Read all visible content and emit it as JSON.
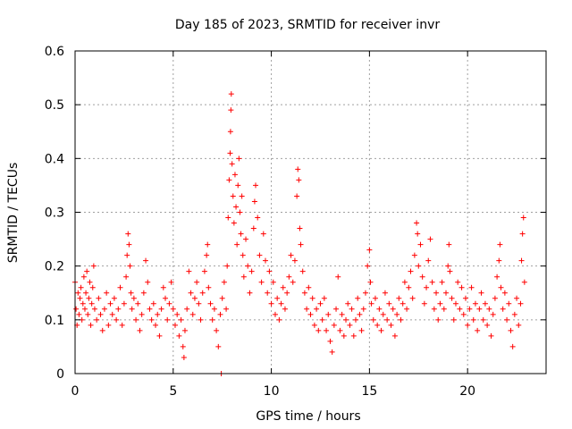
{
  "chart_data": {
    "type": "scatter",
    "title": "Day 185 of 2023, SRMTID for receiver invr",
    "xlabel": "GPS time / hours",
    "ylabel": "SRMTID / TECUs",
    "xlim": [
      0,
      24
    ],
    "ylim": [
      0,
      0.6
    ],
    "xticks": [
      0,
      5,
      10,
      15,
      20
    ],
    "yticks": [
      0,
      0.1,
      0.2,
      0.3,
      0.4,
      0.5,
      0.6
    ],
    "xtick_labels": [
      "0",
      "5",
      "10",
      "15",
      "20"
    ],
    "ytick_labels": [
      "0",
      "0.1",
      "0.2",
      "0.3",
      "0.4",
      "0.5",
      "0.6"
    ],
    "grid": true,
    "marker": "+",
    "color": "#ff0000",
    "series": [
      {
        "name": "SRMTID",
        "points": [
          [
            0.0,
            0.17
          ],
          [
            0.05,
            0.12
          ],
          [
            0.1,
            0.09
          ],
          [
            0.15,
            0.15
          ],
          [
            0.2,
            0.11
          ],
          [
            0.25,
            0.14
          ],
          [
            0.3,
            0.16
          ],
          [
            0.35,
            0.1
          ],
          [
            0.4,
            0.13
          ],
          [
            0.45,
            0.18
          ],
          [
            0.5,
            0.12
          ],
          [
            0.55,
            0.15
          ],
          [
            0.6,
            0.19
          ],
          [
            0.65,
            0.11
          ],
          [
            0.7,
            0.14
          ],
          [
            0.75,
            0.17
          ],
          [
            0.8,
            0.09
          ],
          [
            0.85,
            0.13
          ],
          [
            0.9,
            0.16
          ],
          [
            0.95,
            0.2
          ],
          [
            1.0,
            0.12
          ],
          [
            1.1,
            0.1
          ],
          [
            1.2,
            0.14
          ],
          [
            1.3,
            0.11
          ],
          [
            1.4,
            0.08
          ],
          [
            1.5,
            0.12
          ],
          [
            1.6,
            0.15
          ],
          [
            1.7,
            0.09
          ],
          [
            1.8,
            0.13
          ],
          [
            1.9,
            0.11
          ],
          [
            2.0,
            0.14
          ],
          [
            2.1,
            0.1
          ],
          [
            2.2,
            0.12
          ],
          [
            2.3,
            0.16
          ],
          [
            2.4,
            0.09
          ],
          [
            2.5,
            0.13
          ],
          [
            2.6,
            0.18
          ],
          [
            2.65,
            0.22
          ],
          [
            2.7,
            0.26
          ],
          [
            2.75,
            0.24
          ],
          [
            2.8,
            0.2
          ],
          [
            2.85,
            0.15
          ],
          [
            2.9,
            0.12
          ],
          [
            3.0,
            0.14
          ],
          [
            3.1,
            0.1
          ],
          [
            3.2,
            0.13
          ],
          [
            3.3,
            0.08
          ],
          [
            3.4,
            0.11
          ],
          [
            3.5,
            0.15
          ],
          [
            3.6,
            0.21
          ],
          [
            3.7,
            0.17
          ],
          [
            3.8,
            0.12
          ],
          [
            3.9,
            0.1
          ],
          [
            4.0,
            0.13
          ],
          [
            4.1,
            0.09
          ],
          [
            4.2,
            0.11
          ],
          [
            4.3,
            0.07
          ],
          [
            4.4,
            0.12
          ],
          [
            4.5,
            0.16
          ],
          [
            4.6,
            0.14
          ],
          [
            4.7,
            0.1
          ],
          [
            4.8,
            0.13
          ],
          [
            4.9,
            0.17
          ],
          [
            5.0,
            0.12
          ],
          [
            5.1,
            0.09
          ],
          [
            5.2,
            0.11
          ],
          [
            5.3,
            0.07
          ],
          [
            5.4,
            0.1
          ],
          [
            5.5,
            0.05
          ],
          [
            5.55,
            0.03
          ],
          [
            5.6,
            0.08
          ],
          [
            5.7,
            0.12
          ],
          [
            5.8,
            0.19
          ],
          [
            5.9,
            0.15
          ],
          [
            6.0,
            0.11
          ],
          [
            6.1,
            0.14
          ],
          [
            6.2,
            0.17
          ],
          [
            6.3,
            0.13
          ],
          [
            6.4,
            0.1
          ],
          [
            6.5,
            0.15
          ],
          [
            6.6,
            0.19
          ],
          [
            6.7,
            0.22
          ],
          [
            6.75,
            0.24
          ],
          [
            6.8,
            0.16
          ],
          [
            6.9,
            0.13
          ],
          [
            7.0,
            0.1
          ],
          [
            7.1,
            0.12
          ],
          [
            7.2,
            0.08
          ],
          [
            7.3,
            0.05
          ],
          [
            7.4,
            0.11
          ],
          [
            7.45,
            0.0
          ],
          [
            7.5,
            0.14
          ],
          [
            7.6,
            0.17
          ],
          [
            7.7,
            0.12
          ],
          [
            7.75,
            0.2
          ],
          [
            7.8,
            0.29
          ],
          [
            7.85,
            0.36
          ],
          [
            7.9,
            0.41
          ],
          [
            7.92,
            0.45
          ],
          [
            7.94,
            0.49
          ],
          [
            7.96,
            0.52
          ],
          [
            8.0,
            0.39
          ],
          [
            8.05,
            0.33
          ],
          [
            8.1,
            0.28
          ],
          [
            8.15,
            0.37
          ],
          [
            8.2,
            0.31
          ],
          [
            8.25,
            0.24
          ],
          [
            8.3,
            0.35
          ],
          [
            8.35,
            0.4
          ],
          [
            8.4,
            0.3
          ],
          [
            8.45,
            0.26
          ],
          [
            8.5,
            0.33
          ],
          [
            8.55,
            0.22
          ],
          [
            8.6,
            0.18
          ],
          [
            8.7,
            0.25
          ],
          [
            8.8,
            0.2
          ],
          [
            8.9,
            0.15
          ],
          [
            9.0,
            0.19
          ],
          [
            9.1,
            0.27
          ],
          [
            9.15,
            0.32
          ],
          [
            9.2,
            0.35
          ],
          [
            9.3,
            0.29
          ],
          [
            9.4,
            0.22
          ],
          [
            9.5,
            0.17
          ],
          [
            9.6,
            0.26
          ],
          [
            9.7,
            0.21
          ],
          [
            9.8,
            0.15
          ],
          [
            9.9,
            0.19
          ],
          [
            10.0,
            0.13
          ],
          [
            10.1,
            0.17
          ],
          [
            10.2,
            0.11
          ],
          [
            10.3,
            0.14
          ],
          [
            10.4,
            0.1
          ],
          [
            10.5,
            0.13
          ],
          [
            10.6,
            0.16
          ],
          [
            10.7,
            0.12
          ],
          [
            10.8,
            0.15
          ],
          [
            10.9,
            0.18
          ],
          [
            11.0,
            0.22
          ],
          [
            11.1,
            0.17
          ],
          [
            11.2,
            0.21
          ],
          [
            11.3,
            0.33
          ],
          [
            11.35,
            0.38
          ],
          [
            11.4,
            0.36
          ],
          [
            11.45,
            0.27
          ],
          [
            11.5,
            0.24
          ],
          [
            11.6,
            0.19
          ],
          [
            11.7,
            0.15
          ],
          [
            11.8,
            0.12
          ],
          [
            11.9,
            0.16
          ],
          [
            12.0,
            0.11
          ],
          [
            12.1,
            0.14
          ],
          [
            12.2,
            0.09
          ],
          [
            12.3,
            0.12
          ],
          [
            12.4,
            0.08
          ],
          [
            12.5,
            0.13
          ],
          [
            12.6,
            0.1
          ],
          [
            12.7,
            0.14
          ],
          [
            12.8,
            0.08
          ],
          [
            12.9,
            0.11
          ],
          [
            13.0,
            0.06
          ],
          [
            13.1,
            0.04
          ],
          [
            13.2,
            0.09
          ],
          [
            13.3,
            0.12
          ],
          [
            13.4,
            0.18
          ],
          [
            13.5,
            0.08
          ],
          [
            13.6,
            0.11
          ],
          [
            13.7,
            0.07
          ],
          [
            13.8,
            0.1
          ],
          [
            13.9,
            0.13
          ],
          [
            14.0,
            0.09
          ],
          [
            14.1,
            0.12
          ],
          [
            14.2,
            0.07
          ],
          [
            14.3,
            0.1
          ],
          [
            14.4,
            0.14
          ],
          [
            14.5,
            0.11
          ],
          [
            14.6,
            0.08
          ],
          [
            14.7,
            0.12
          ],
          [
            14.8,
            0.15
          ],
          [
            14.9,
            0.2
          ],
          [
            15.0,
            0.23
          ],
          [
            15.05,
            0.17
          ],
          [
            15.1,
            0.13
          ],
          [
            15.2,
            0.1
          ],
          [
            15.3,
            0.14
          ],
          [
            15.4,
            0.09
          ],
          [
            15.5,
            0.12
          ],
          [
            15.6,
            0.08
          ],
          [
            15.7,
            0.11
          ],
          [
            15.8,
            0.15
          ],
          [
            15.9,
            0.1
          ],
          [
            16.0,
            0.13
          ],
          [
            16.1,
            0.09
          ],
          [
            16.2,
            0.12
          ],
          [
            16.3,
            0.07
          ],
          [
            16.4,
            0.11
          ],
          [
            16.5,
            0.14
          ],
          [
            16.6,
            0.1
          ],
          [
            16.7,
            0.13
          ],
          [
            16.8,
            0.17
          ],
          [
            16.9,
            0.12
          ],
          [
            17.0,
            0.16
          ],
          [
            17.1,
            0.19
          ],
          [
            17.2,
            0.14
          ],
          [
            17.3,
            0.22
          ],
          [
            17.4,
            0.28
          ],
          [
            17.45,
            0.26
          ],
          [
            17.5,
            0.2
          ],
          [
            17.6,
            0.24
          ],
          [
            17.7,
            0.18
          ],
          [
            17.8,
            0.13
          ],
          [
            17.9,
            0.16
          ],
          [
            18.0,
            0.21
          ],
          [
            18.1,
            0.25
          ],
          [
            18.2,
            0.17
          ],
          [
            18.3,
            0.12
          ],
          [
            18.4,
            0.15
          ],
          [
            18.5,
            0.1
          ],
          [
            18.6,
            0.13
          ],
          [
            18.7,
            0.17
          ],
          [
            18.8,
            0.12
          ],
          [
            18.9,
            0.15
          ],
          [
            19.0,
            0.2
          ],
          [
            19.05,
            0.24
          ],
          [
            19.1,
            0.19
          ],
          [
            19.2,
            0.14
          ],
          [
            19.3,
            0.1
          ],
          [
            19.4,
            0.13
          ],
          [
            19.5,
            0.17
          ],
          [
            19.6,
            0.12
          ],
          [
            19.7,
            0.16
          ],
          [
            19.8,
            0.11
          ],
          [
            19.9,
            0.14
          ],
          [
            20.0,
            0.09
          ],
          [
            20.1,
            0.12
          ],
          [
            20.2,
            0.16
          ],
          [
            20.3,
            0.1
          ],
          [
            20.4,
            0.13
          ],
          [
            20.5,
            0.08
          ],
          [
            20.6,
            0.12
          ],
          [
            20.7,
            0.15
          ],
          [
            20.8,
            0.1
          ],
          [
            20.9,
            0.13
          ],
          [
            21.0,
            0.09
          ],
          [
            21.1,
            0.12
          ],
          [
            21.2,
            0.07
          ],
          [
            21.3,
            0.11
          ],
          [
            21.4,
            0.14
          ],
          [
            21.5,
            0.18
          ],
          [
            21.6,
            0.21
          ],
          [
            21.65,
            0.24
          ],
          [
            21.7,
            0.16
          ],
          [
            21.8,
            0.12
          ],
          [
            21.9,
            0.15
          ],
          [
            22.0,
            0.1
          ],
          [
            22.1,
            0.13
          ],
          [
            22.2,
            0.08
          ],
          [
            22.3,
            0.05
          ],
          [
            22.4,
            0.11
          ],
          [
            22.5,
            0.14
          ],
          [
            22.6,
            0.09
          ],
          [
            22.7,
            0.13
          ],
          [
            22.75,
            0.21
          ],
          [
            22.8,
            0.26
          ],
          [
            22.85,
            0.29
          ],
          [
            22.9,
            0.17
          ]
        ]
      }
    ]
  }
}
